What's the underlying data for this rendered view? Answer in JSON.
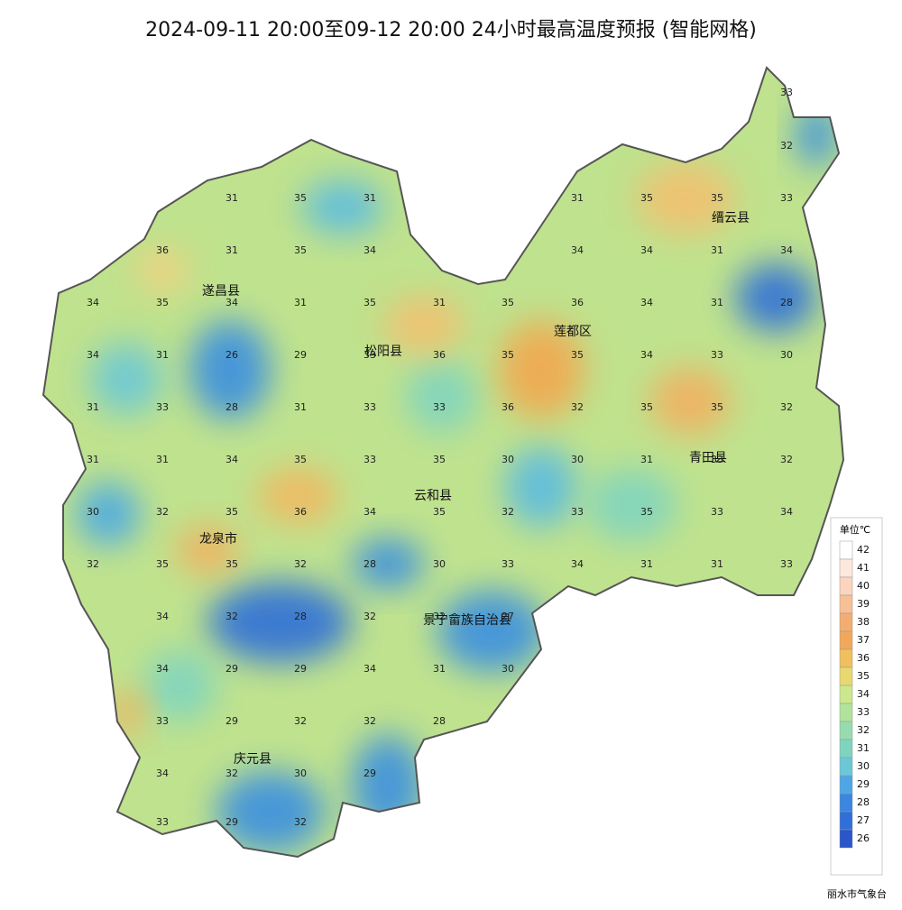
{
  "header": {
    "title": "2024-09-11 20:00至09-12 20:00 24小时最高温度预报 (智能网格)"
  },
  "map": {
    "counties": [
      "遂昌县",
      "松阳县",
      "莲都区",
      "缙云县",
      "青田县",
      "云和县",
      "龙泉市",
      "景宁畲族自治县",
      "庆元县"
    ],
    "stations": [
      33,
      32,
      31,
      35,
      31,
      31,
      35,
      35,
      33,
      36,
      31,
      35,
      34,
      34,
      34,
      31,
      34,
      34,
      35,
      34,
      31,
      35,
      31,
      35,
      36,
      34,
      31,
      28,
      34,
      31,
      26,
      29,
      33,
      36,
      35,
      35,
      34,
      33,
      30,
      31,
      33,
      28,
      31,
      33,
      33,
      36,
      32,
      35,
      35,
      32,
      31,
      31,
      34,
      35,
      33,
      35,
      30,
      30,
      31,
      33,
      32,
      30,
      32,
      35,
      36,
      34,
      35,
      32,
      33,
      35,
      33,
      34,
      32,
      35,
      35,
      32,
      28,
      30,
      33,
      34,
      31,
      31,
      33,
      34,
      32,
      28,
      32,
      32,
      27,
      34,
      29,
      29,
      34,
      31,
      30,
      33,
      29,
      32,
      32,
      28,
      34,
      32,
      30,
      29,
      33,
      29,
      32
    ]
  },
  "legend": {
    "unit": "单位℃",
    "labels": [
      42,
      41,
      40,
      39,
      38,
      37,
      36,
      35,
      34,
      33,
      32,
      31,
      30,
      29,
      28,
      27,
      26
    ]
  },
  "footer": "丽水市气象台"
}
